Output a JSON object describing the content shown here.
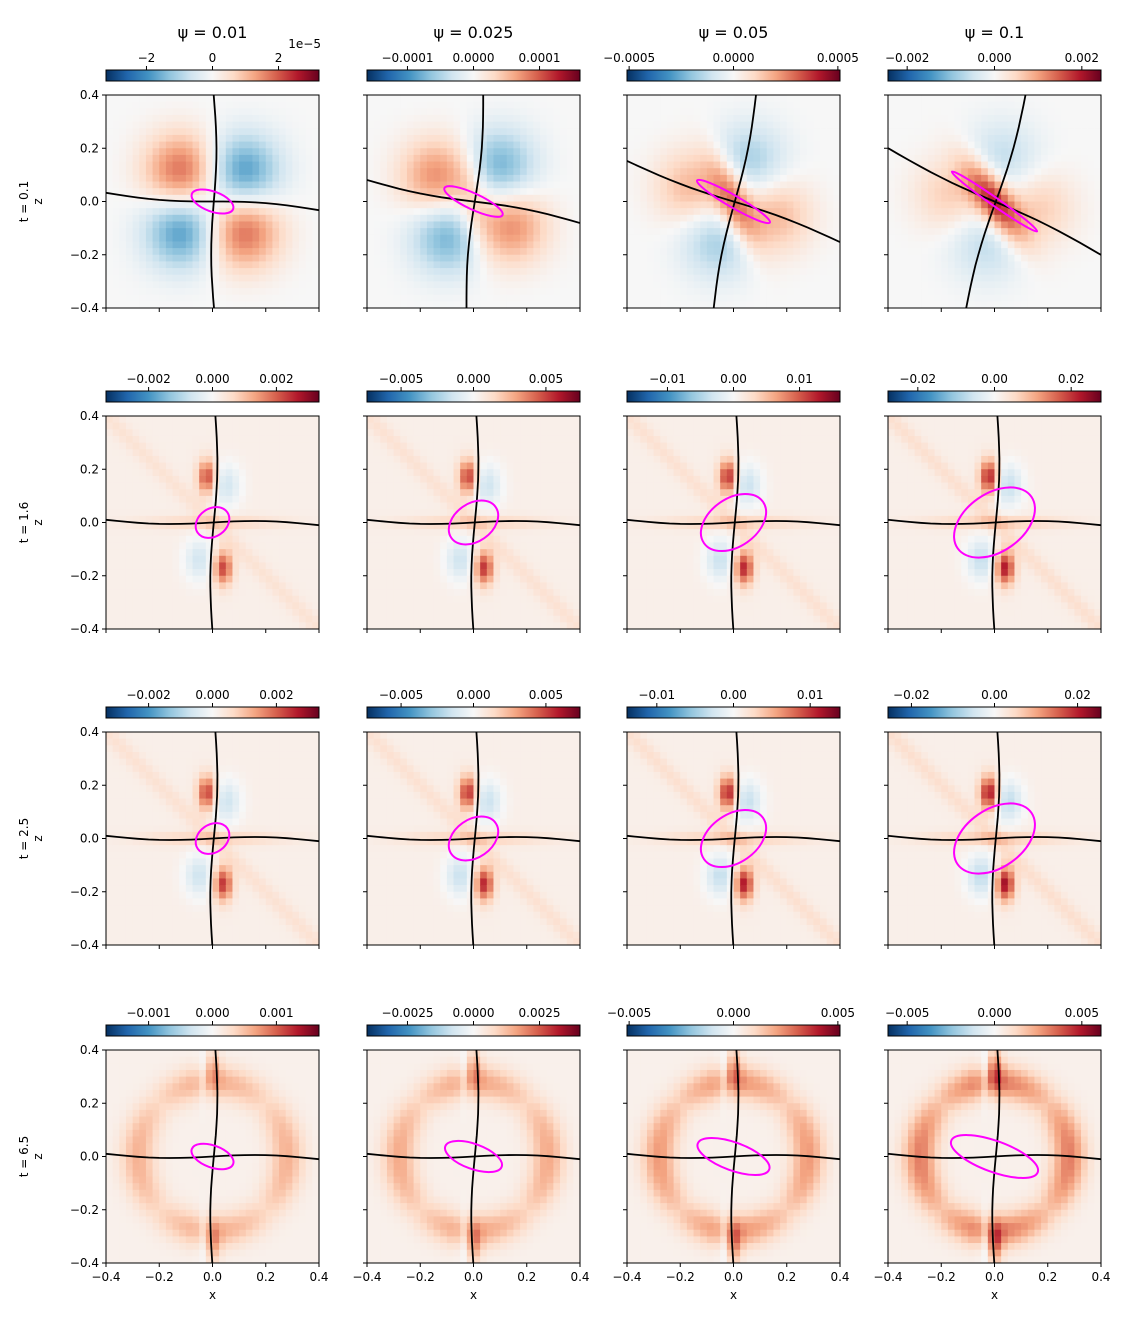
{
  "figure": {
    "column_titles": [
      "ψ = 0.01",
      "ψ = 0.025",
      "ψ = 0.05",
      "ψ = 0.1"
    ],
    "row_labels": [
      "t = 0.1",
      "t = 1.6",
      "t = 2.5",
      "t = 6.5"
    ],
    "ylabel": "z",
    "xlabel": "x"
  },
  "chart_data": {
    "type": "heatmap",
    "colormap": "RdBu_r",
    "separatrix_color": "#000000",
    "contour_color": "#ff00ff",
    "xlim": [
      -0.4,
      0.4
    ],
    "ylim": [
      -0.4,
      0.4
    ],
    "xticks": [
      "−0.4",
      "−0.2",
      "0.0",
      "0.2",
      "0.4"
    ],
    "yticks": [
      "0.4",
      "0.2",
      "0.0",
      "−0.2",
      "−0.4"
    ],
    "panels": [
      {
        "row": 0,
        "col": 0,
        "pattern": "quad",
        "angle": 0,
        "strength": 1.0,
        "cbar_ticks": [
          "−2",
          "0",
          "2"
        ],
        "cbar_ticks_v": [
          -0.62,
          0,
          0.62
        ],
        "cbar_offset": "1e−5"
      },
      {
        "row": 0,
        "col": 1,
        "pattern": "quad",
        "angle": 10,
        "strength": 0.85,
        "cbar_ticks": [
          "−0.0001",
          "0.0000",
          "0.0001"
        ],
        "cbar_ticks_v": [
          -0.62,
          0,
          0.62
        ],
        "cbar_offset": ""
      },
      {
        "row": 0,
        "col": 2,
        "pattern": "quad",
        "angle": 25,
        "strength": 0.6,
        "cbar_ticks": [
          "−0.0005",
          "0.0000",
          "0.0005"
        ],
        "cbar_ticks_v": [
          -0.98,
          0,
          0.98
        ],
        "cbar_offset": ""
      },
      {
        "row": 0,
        "col": 3,
        "pattern": "quad",
        "angle": 35,
        "strength": 0.45,
        "cbar_ticks": [
          "−0.002",
          "0.000",
          "0.002"
        ],
        "cbar_ticks_v": [
          -0.82,
          0,
          0.82
        ],
        "cbar_offset": ""
      },
      {
        "row": 1,
        "col": 0,
        "pattern": "cross",
        "angle": 0,
        "strength": 0.7,
        "cbar_ticks": [
          "−0.002",
          "0.000",
          "0.002"
        ],
        "cbar_ticks_v": [
          -0.6,
          0,
          0.6
        ],
        "cbar_offset": ""
      },
      {
        "row": 1,
        "col": 1,
        "pattern": "cross",
        "angle": 0,
        "strength": 0.75,
        "cbar_ticks": [
          "−0.005",
          "0.000",
          "0.005"
        ],
        "cbar_ticks_v": [
          -0.68,
          0,
          0.68
        ],
        "cbar_offset": ""
      },
      {
        "row": 1,
        "col": 2,
        "pattern": "cross",
        "angle": 0,
        "strength": 0.8,
        "cbar_ticks": [
          "−0.01",
          "0.00",
          "0.01"
        ],
        "cbar_ticks_v": [
          -0.62,
          0,
          0.62
        ],
        "cbar_offset": ""
      },
      {
        "row": 1,
        "col": 3,
        "pattern": "cross",
        "angle": 0,
        "strength": 0.85,
        "cbar_ticks": [
          "−0.02",
          "0.00",
          "0.02"
        ],
        "cbar_ticks_v": [
          -0.72,
          0,
          0.72
        ],
        "cbar_offset": ""
      },
      {
        "row": 2,
        "col": 0,
        "pattern": "cross",
        "angle": 0,
        "strength": 0.75,
        "cbar_ticks": [
          "−0.002",
          "0.000",
          "0.002"
        ],
        "cbar_ticks_v": [
          -0.6,
          0,
          0.6
        ],
        "cbar_offset": ""
      },
      {
        "row": 2,
        "col": 1,
        "pattern": "cross",
        "angle": 0,
        "strength": 0.8,
        "cbar_ticks": [
          "−0.005",
          "0.000",
          "0.005"
        ],
        "cbar_ticks_v": [
          -0.68,
          0,
          0.68
        ],
        "cbar_offset": ""
      },
      {
        "row": 2,
        "col": 2,
        "pattern": "cross",
        "angle": 0,
        "strength": 0.85,
        "cbar_ticks": [
          "−0.01",
          "0.00",
          "0.01"
        ],
        "cbar_ticks_v": [
          -0.72,
          0,
          0.72
        ],
        "cbar_offset": ""
      },
      {
        "row": 2,
        "col": 3,
        "pattern": "cross",
        "angle": 0,
        "strength": 0.9,
        "cbar_ticks": [
          "−0.02",
          "0.00",
          "0.02"
        ],
        "cbar_ticks_v": [
          -0.78,
          0,
          0.78
        ],
        "cbar_offset": ""
      },
      {
        "row": 3,
        "col": 0,
        "pattern": "x",
        "angle": 0,
        "strength": 0.55,
        "cbar_ticks": [
          "−0.001",
          "0.000",
          "0.001"
        ],
        "cbar_ticks_v": [
          -0.6,
          0,
          0.6
        ],
        "cbar_offset": ""
      },
      {
        "row": 3,
        "col": 1,
        "pattern": "x",
        "angle": 0,
        "strength": 0.6,
        "cbar_ticks": [
          "−0.0025",
          "0.0000",
          "0.0025"
        ],
        "cbar_ticks_v": [
          -0.62,
          0,
          0.62
        ],
        "cbar_offset": ""
      },
      {
        "row": 3,
        "col": 2,
        "pattern": "x",
        "angle": 0,
        "strength": 0.7,
        "cbar_ticks": [
          "−0.005",
          "0.000",
          "0.005"
        ],
        "cbar_ticks_v": [
          -0.98,
          0,
          0.98
        ],
        "cbar_offset": ""
      },
      {
        "row": 3,
        "col": 3,
        "pattern": "x",
        "angle": 0,
        "strength": 0.85,
        "cbar_ticks": [
          "−0.005",
          "0.000",
          "0.005"
        ],
        "cbar_ticks_v": [
          -0.82,
          0,
          0.82
        ],
        "cbar_offset": ""
      }
    ]
  }
}
